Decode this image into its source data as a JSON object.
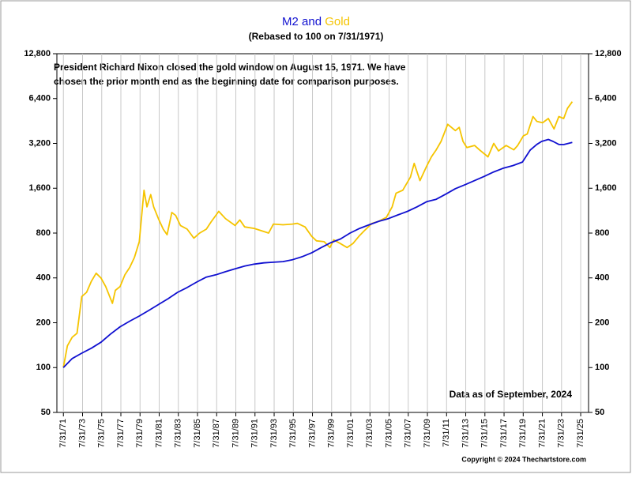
{
  "chart_data": {
    "type": "line",
    "title": "M2 and Gold",
    "subtitle": "(Rebased to 100 on 7/31/1971)",
    "note": [
      "President Richard Nixon closed the gold window on August 15, 1971.  We have",
      "chosen the prior month end as the beginning date for comparison purposes."
    ],
    "data_note": "Data as of September, 2024",
    "copyright": "Copyright © 2024 Thechartstore.com",
    "log_scale": true,
    "grid": true,
    "xlim": [
      1970.9,
      2026.4
    ],
    "xticks": [
      {
        "value": 1971.58,
        "label": "7/31/71"
      },
      {
        "value": 1973.58,
        "label": "7/31/73"
      },
      {
        "value": 1975.58,
        "label": "7/31/75"
      },
      {
        "value": 1977.58,
        "label": "7/31/77"
      },
      {
        "value": 1979.58,
        "label": "7/31/79"
      },
      {
        "value": 1981.58,
        "label": "7/31/81"
      },
      {
        "value": 1983.58,
        "label": "7/31/83"
      },
      {
        "value": 1985.58,
        "label": "7/31/85"
      },
      {
        "value": 1987.58,
        "label": "7/31/87"
      },
      {
        "value": 1989.58,
        "label": "7/31/89"
      },
      {
        "value": 1991.58,
        "label": "7/31/91"
      },
      {
        "value": 1993.58,
        "label": "7/31/93"
      },
      {
        "value": 1995.58,
        "label": "7/31/95"
      },
      {
        "value": 1997.58,
        "label": "7/31/97"
      },
      {
        "value": 1999.58,
        "label": "7/31/99"
      },
      {
        "value": 2001.58,
        "label": "7/31/01"
      },
      {
        "value": 2003.58,
        "label": "7/31/03"
      },
      {
        "value": 2005.58,
        "label": "7/31/05"
      },
      {
        "value": 2007.58,
        "label": "7/31/07"
      },
      {
        "value": 2009.58,
        "label": "7/31/09"
      },
      {
        "value": 2011.58,
        "label": "7/31/11"
      },
      {
        "value": 2013.58,
        "label": "7/31/13"
      },
      {
        "value": 2015.58,
        "label": "7/31/15"
      },
      {
        "value": 2017.58,
        "label": "7/31/17"
      },
      {
        "value": 2019.58,
        "label": "7/31/19"
      },
      {
        "value": 2021.58,
        "label": "7/31/21"
      },
      {
        "value": 2023.58,
        "label": "7/31/23"
      },
      {
        "value": 2025.58,
        "label": "7/31/25"
      }
    ],
    "ylim": [
      50,
      12800
    ],
    "yticks": [
      50,
      100,
      200,
      400,
      800,
      {
        "value": 1600,
        "label": "1,600"
      },
      {
        "value": 3200,
        "label": "3,200"
      },
      {
        "value": 6400,
        "label": "6,400"
      },
      {
        "value": 12800,
        "label": "12,800"
      }
    ],
    "y2lim": [
      50,
      12800
    ],
    "y2ticks": [
      50,
      100,
      200,
      400,
      800,
      {
        "value": 1600,
        "label": "1,600"
      },
      {
        "value": 3200,
        "label": "3,200"
      },
      {
        "value": 6400,
        "label": "6,400"
      },
      {
        "value": 12800,
        "label": "12,800"
      }
    ],
    "series": [
      {
        "name": "Gold",
        "color": "#f5c400",
        "x": [
          1971.58,
          1972.0,
          1972.5,
          1973.0,
          1973.5,
          1974.0,
          1974.5,
          1975.0,
          1975.5,
          1976.0,
          1976.7,
          1977.0,
          1977.5,
          1978.0,
          1978.5,
          1979.0,
          1979.5,
          1980.0,
          1980.3,
          1980.7,
          1981.0,
          1981.5,
          1982.0,
          1982.4,
          1982.9,
          1983.3,
          1983.8,
          1984.5,
          1985.2,
          1985.8,
          1986.5,
          1987.0,
          1987.8,
          1988.5,
          1989.5,
          1990.0,
          1990.5,
          1991.5,
          1992.5,
          1993.0,
          1993.5,
          1994.5,
          1995.5,
          1996.0,
          1996.8,
          1997.5,
          1998.0,
          1998.8,
          1999.4,
          1999.8,
          2000.5,
          2001.2,
          2001.8,
          2002.5,
          2003.0,
          2003.8,
          2004.5,
          2005.3,
          2005.9,
          2006.3,
          2007.0,
          2007.8,
          2008.2,
          2008.8,
          2009.5,
          2010.0,
          2010.5,
          2011.0,
          2011.7,
          2012.5,
          2012.9,
          2013.3,
          2013.7,
          2014.5,
          2015.0,
          2015.9,
          2016.5,
          2017.0,
          2017.8,
          2018.6,
          2019.0,
          2019.6,
          2020.0,
          2020.6,
          2021.0,
          2021.6,
          2022.2,
          2022.8,
          2023.3,
          2023.8,
          2024.2,
          2024.7
        ],
        "values": [
          100,
          140,
          160,
          170,
          300,
          320,
          380,
          430,
          400,
          350,
          270,
          330,
          350,
          420,
          470,
          550,
          700,
          1550,
          1200,
          1450,
          1200,
          1000,
          850,
          780,
          1100,
          1050,
          900,
          850,
          740,
          800,
          850,
          950,
          1120,
          1000,
          900,
          980,
          880,
          860,
          820,
          800,
          920,
          910,
          920,
          930,
          880,
          760,
          710,
          700,
          640,
          720,
          680,
          640,
          680,
          770,
          830,
          930,
          960,
          1020,
          1200,
          1480,
          1550,
          1900,
          2350,
          1800,
          2250,
          2600,
          2900,
          3300,
          4300,
          3900,
          4100,
          3300,
          3000,
          3100,
          2900,
          2600,
          3200,
          2850,
          3100,
          2900,
          3100,
          3600,
          3700,
          4850,
          4500,
          4400,
          4700,
          4000,
          4850,
          4700,
          5500,
          6100
        ]
      },
      {
        "name": "M2",
        "color": "#1010d0",
        "x": [
          1971.58,
          1972.5,
          1973.5,
          1974.5,
          1975.5,
          1976.5,
          1977.5,
          1978.5,
          1979.5,
          1980.5,
          1981.5,
          1982.5,
          1983.5,
          1984.5,
          1985.5,
          1986.5,
          1987.5,
          1988.5,
          1989.5,
          1990.5,
          1991.5,
          1992.5,
          1993.5,
          1994.5,
          1995.5,
          1996.5,
          1997.5,
          1998.5,
          1999.5,
          2000.5,
          2001.5,
          2002.5,
          2003.5,
          2004.5,
          2005.5,
          2006.5,
          2007.5,
          2008.5,
          2009.5,
          2010.5,
          2011.5,
          2012.5,
          2013.5,
          2014.5,
          2015.5,
          2016.5,
          2017.5,
          2018.5,
          2019.5,
          2020.3,
          2021.0,
          2021.5,
          2022.2,
          2022.7,
          2023.3,
          2023.8,
          2024.7
        ],
        "values": [
          100,
          115,
          125,
          135,
          148,
          168,
          188,
          205,
          222,
          242,
          265,
          290,
          320,
          345,
          375,
          405,
          420,
          440,
          460,
          480,
          495,
          505,
          510,
          515,
          530,
          555,
          590,
          640,
          690,
          730,
          800,
          860,
          910,
          960,
          1000,
          1060,
          1120,
          1200,
          1300,
          1350,
          1460,
          1590,
          1690,
          1800,
          1920,
          2060,
          2180,
          2270,
          2400,
          2880,
          3150,
          3300,
          3400,
          3300,
          3150,
          3140,
          3250
        ]
      }
    ]
  }
}
